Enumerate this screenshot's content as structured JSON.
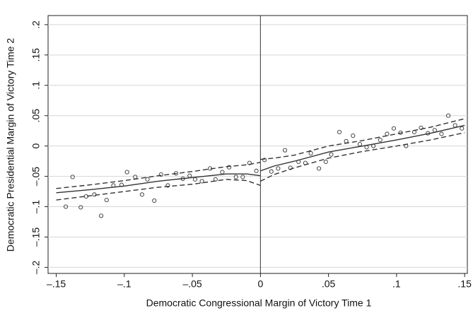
{
  "chart_data": {
    "type": "scatter",
    "x_label": "Democratic Congressional Margin of Victory Time 1",
    "y_label": "Democratic Presidential Margin of Victory Time 2",
    "xlim": [
      -0.156,
      0.152
    ],
    "ylim": [
      -0.21,
      0.215
    ],
    "xticks": [
      {
        "value": -0.15,
        "label": "–.15"
      },
      {
        "value": -0.1,
        "label": "–.1"
      },
      {
        "value": -0.05,
        "label": "–.05"
      },
      0,
      {
        "value": 0.05,
        "label": ".05"
      },
      {
        "value": 0.1,
        "label": ".1"
      },
      {
        "value": 0.15,
        "label": ".15"
      }
    ],
    "yticks": [
      {
        "value": -0.2,
        "label": "–.2"
      },
      {
        "value": -0.15,
        "label": "–.15"
      },
      {
        "value": -0.1,
        "label": "–.1"
      },
      {
        "value": -0.05,
        "label": "–.05"
      },
      0,
      {
        "value": 0.05,
        "label": ".05"
      },
      {
        "value": 0.1,
        "label": ".1"
      },
      {
        "value": 0.15,
        "label": ".15"
      },
      {
        "value": 0.2,
        "label": ".2"
      }
    ],
    "grid": true,
    "cutoff": 0,
    "points": {
      "color": "#333333",
      "x": [
        -0.143,
        -0.138,
        -0.132,
        -0.128,
        -0.122,
        -0.117,
        -0.113,
        -0.108,
        -0.102,
        -0.098,
        -0.092,
        -0.087,
        -0.083,
        -0.078,
        -0.073,
        -0.068,
        -0.062,
        -0.057,
        -0.052,
        -0.048,
        -0.043,
        -0.037,
        -0.033,
        -0.028,
        -0.023,
        -0.018,
        -0.013,
        -0.008,
        -0.003,
        0.003,
        0.008,
        0.013,
        0.018,
        0.022,
        0.028,
        0.033,
        0.037,
        0.043,
        0.048,
        0.052,
        0.058,
        0.063,
        0.068,
        0.073,
        0.078,
        0.083,
        0.088,
        0.093,
        0.098,
        0.103,
        0.107,
        0.113,
        0.118,
        0.123,
        0.128,
        0.133,
        0.138,
        0.143,
        0.148
      ],
      "values": [
        -0.1,
        -0.051,
        -0.101,
        -0.083,
        -0.08,
        -0.115,
        -0.089,
        -0.065,
        -0.064,
        -0.043,
        -0.051,
        -0.08,
        -0.055,
        -0.09,
        -0.047,
        -0.065,
        -0.045,
        -0.054,
        -0.049,
        -0.055,
        -0.058,
        -0.037,
        -0.055,
        -0.043,
        -0.035,
        -0.051,
        -0.051,
        -0.028,
        -0.041,
        -0.023,
        -0.042,
        -0.037,
        -0.007,
        -0.036,
        -0.026,
        -0.028,
        -0.012,
        -0.037,
        -0.026,
        -0.014,
        0.023,
        0.008,
        0.017,
        0.003,
        -0.002,
        0,
        0.01,
        0.02,
        0.029,
        0.022,
        0,
        0.023,
        0.03,
        0.021,
        0.026,
        0.02,
        0.05,
        0.034,
        0.029
      ]
    },
    "series": [
      {
        "color": "#333333",
        "dash": false,
        "x": [
          -0.15,
          -0.125,
          -0.1,
          -0.075,
          -0.05,
          -0.025,
          -0.01,
          0
        ],
        "values": [
          -0.077,
          -0.072,
          -0.066,
          -0.058,
          -0.052,
          -0.046,
          -0.046,
          -0.049
        ]
      },
      {
        "color": "#333333",
        "dash": true,
        "x": [
          -0.15,
          -0.125,
          -0.1,
          -0.075,
          -0.05,
          -0.025,
          -0.01,
          0
        ],
        "values": [
          -0.07,
          -0.064,
          -0.057,
          -0.049,
          -0.042,
          -0.034,
          -0.031,
          -0.027
        ]
      },
      {
        "color": "#333333",
        "dash": true,
        "x": [
          -0.15,
          -0.125,
          -0.1,
          -0.075,
          -0.05,
          -0.025,
          -0.01,
          0
        ],
        "values": [
          -0.089,
          -0.082,
          -0.075,
          -0.068,
          -0.063,
          -0.055,
          -0.057,
          -0.065
        ]
      },
      {
        "color": "#333333",
        "dash": false,
        "x": [
          0,
          0.01,
          0.025,
          0.05,
          0.075,
          0.1,
          0.125,
          0.15
        ],
        "values": [
          -0.041,
          -0.033,
          -0.025,
          -0.01,
          0,
          0.01,
          0.021,
          0.034
        ]
      },
      {
        "color": "#333333",
        "dash": true,
        "x": [
          0,
          0.01,
          0.025,
          0.05,
          0.075,
          0.1,
          0.125,
          0.15
        ],
        "values": [
          -0.022,
          -0.02,
          -0.015,
          0,
          0.009,
          0.02,
          0.031,
          0.045
        ]
      },
      {
        "color": "#333333",
        "dash": true,
        "x": [
          0,
          0.01,
          0.025,
          0.05,
          0.075,
          0.1,
          0.125,
          0.15
        ],
        "values": [
          -0.058,
          -0.047,
          -0.036,
          -0.02,
          -0.009,
          0,
          0.01,
          0.022
        ]
      }
    ]
  }
}
